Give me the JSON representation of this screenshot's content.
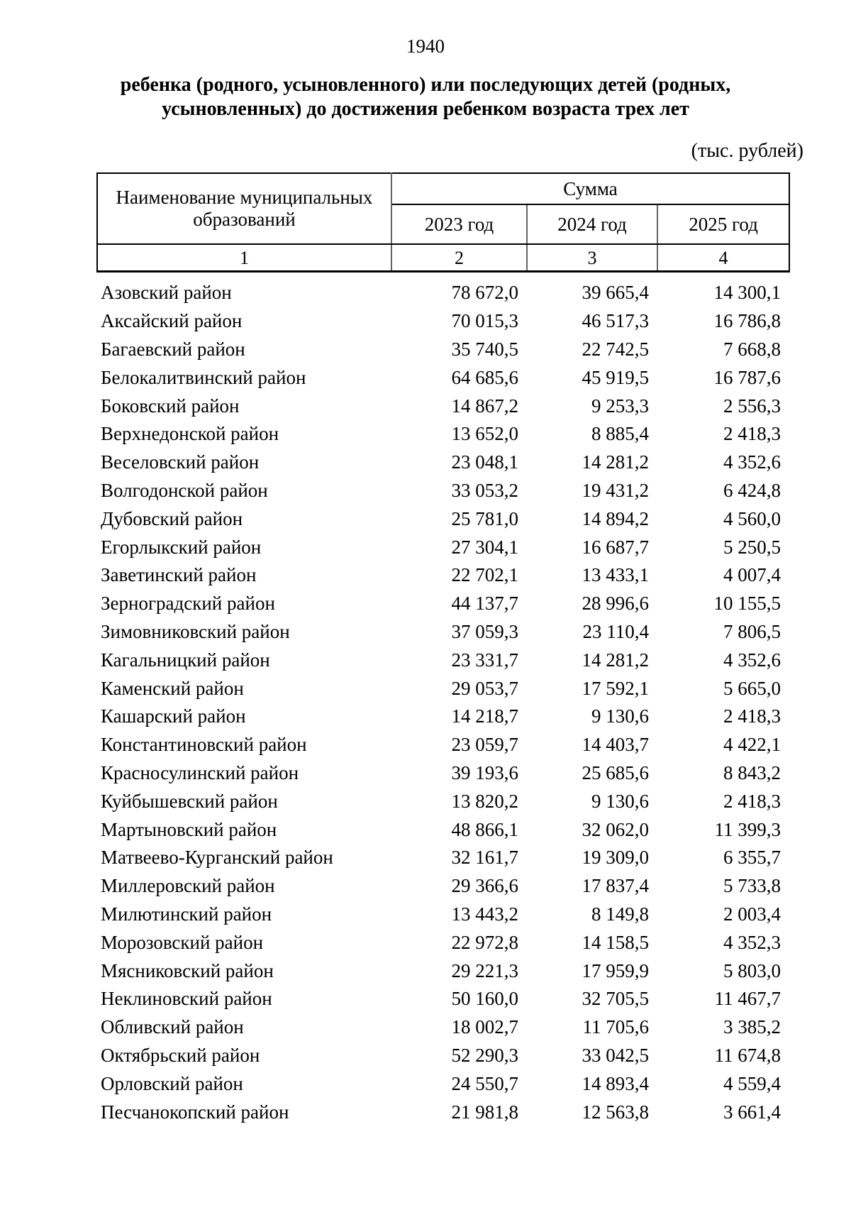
{
  "page": {
    "number": "1940",
    "title_line1": "ребенка (родного, усыновленного) или последующих детей (родных,",
    "title_line2": "усыновленных) до достижения ребенком возраста трех лет",
    "units_note": "(тыс. рублей)"
  },
  "table": {
    "name_header": "Наименование муниципальных образований",
    "sum_header": "Сумма",
    "year_headers": [
      "2023 год",
      "2024 год",
      "2025 год"
    ],
    "index_labels": [
      "1",
      "2",
      "3",
      "4"
    ],
    "rows": [
      {
        "name": "Азовский район",
        "v2023": "78 672,0",
        "v2024": "39 665,4",
        "v2025": "14 300,1"
      },
      {
        "name": "Аксайский район",
        "v2023": "70 015,3",
        "v2024": "46 517,3",
        "v2025": "16 786,8"
      },
      {
        "name": "Багаевский район",
        "v2023": "35 740,5",
        "v2024": "22 742,5",
        "v2025": "7 668,8"
      },
      {
        "name": "Белокалитвинский район",
        "v2023": "64 685,6",
        "v2024": "45 919,5",
        "v2025": "16 787,6"
      },
      {
        "name": "Боковский район",
        "v2023": "14 867,2",
        "v2024": "9 253,3",
        "v2025": "2 556,3"
      },
      {
        "name": "Верхнедонской район",
        "v2023": "13 652,0",
        "v2024": "8 885,4",
        "v2025": "2 418,3"
      },
      {
        "name": "Веселовский район",
        "v2023": "23 048,1",
        "v2024": "14 281,2",
        "v2025": "4 352,6"
      },
      {
        "name": "Волгодонской район",
        "v2023": "33 053,2",
        "v2024": "19 431,2",
        "v2025": "6 424,8"
      },
      {
        "name": "Дубовский район",
        "v2023": "25 781,0",
        "v2024": "14 894,2",
        "v2025": "4 560,0"
      },
      {
        "name": "Егорлыкский район",
        "v2023": "27 304,1",
        "v2024": "16 687,7",
        "v2025": "5 250,5"
      },
      {
        "name": "Заветинский район",
        "v2023": "22 702,1",
        "v2024": "13 433,1",
        "v2025": "4 007,4"
      },
      {
        "name": "Зерноградский район",
        "v2023": "44 137,7",
        "v2024": "28 996,6",
        "v2025": "10 155,5"
      },
      {
        "name": "Зимовниковский район",
        "v2023": "37 059,3",
        "v2024": "23 110,4",
        "v2025": "7 806,5"
      },
      {
        "name": "Кагальницкий район",
        "v2023": "23 331,7",
        "v2024": "14 281,2",
        "v2025": "4 352,6"
      },
      {
        "name": "Каменский район",
        "v2023": "29 053,7",
        "v2024": "17 592,1",
        "v2025": "5 665,0"
      },
      {
        "name": "Кашарский район",
        "v2023": "14 218,7",
        "v2024": "9 130,6",
        "v2025": "2 418,3"
      },
      {
        "name": "Константиновский район",
        "v2023": "23 059,7",
        "v2024": "14 403,7",
        "v2025": "4 422,1"
      },
      {
        "name": "Красносулинский район",
        "v2023": "39 193,6",
        "v2024": "25 685,6",
        "v2025": "8 843,2"
      },
      {
        "name": "Куйбышевский район",
        "v2023": "13 820,2",
        "v2024": "9 130,6",
        "v2025": "2 418,3"
      },
      {
        "name": "Мартыновский район",
        "v2023": "48 866,1",
        "v2024": "32 062,0",
        "v2025": "11 399,3"
      },
      {
        "name": "Матвеево-Курганский район",
        "v2023": "32 161,7",
        "v2024": "19 309,0",
        "v2025": "6 355,7"
      },
      {
        "name": "Миллеровский район",
        "v2023": "29 366,6",
        "v2024": "17 837,4",
        "v2025": "5 733,8"
      },
      {
        "name": "Милютинский район",
        "v2023": "13 443,2",
        "v2024": "8 149,8",
        "v2025": "2 003,4"
      },
      {
        "name": "Морозовский район",
        "v2023": "22 972,8",
        "v2024": "14 158,5",
        "v2025": "4 352,3"
      },
      {
        "name": "Мясниковский район",
        "v2023": "29 221,3",
        "v2024": "17 959,9",
        "v2025": "5 803,0"
      },
      {
        "name": "Неклиновский район",
        "v2023": "50 160,0",
        "v2024": "32 705,5",
        "v2025": "11 467,7"
      },
      {
        "name": "Обливский район",
        "v2023": "18 002,7",
        "v2024": "11 705,6",
        "v2025": "3 385,2"
      },
      {
        "name": "Октябрьский район",
        "v2023": "52 290,3",
        "v2024": "33 042,5",
        "v2025": "11 674,8"
      },
      {
        "name": "Орловский район",
        "v2023": "24 550,7",
        "v2024": "14 893,4",
        "v2025": "4 559,4"
      },
      {
        "name": "Песчанокопский район",
        "v2023": "21 981,8",
        "v2024": "12 563,8",
        "v2025": "3 661,4"
      }
    ]
  }
}
